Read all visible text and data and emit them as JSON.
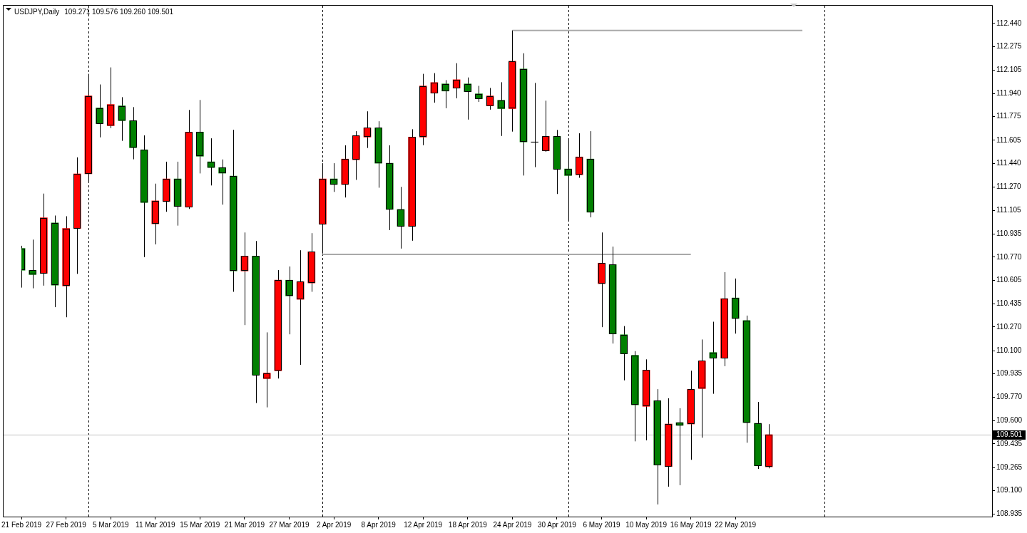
{
  "chart_data": {
    "type": "candlestick",
    "title": "USDJPY,Daily",
    "subtitle": "109.271 109.576 109.260 109.501",
    "categories": [
      "21 Feb 2019",
      null,
      null,
      null,
      "27 Feb 2019",
      null,
      null,
      null,
      "5 Mar 2019",
      null,
      null,
      null,
      "11 Mar 2019",
      null,
      null,
      null,
      "15 Mar 2019",
      null,
      null,
      null,
      "21 Mar 2019",
      null,
      null,
      null,
      "27 Mar 2019",
      null,
      null,
      null,
      "2 Apr 2019",
      null,
      null,
      null,
      "8 Apr 2019",
      null,
      null,
      null,
      "12 Apr 2019",
      null,
      null,
      null,
      "18 Apr 2019",
      null,
      null,
      null,
      "24 Apr 2019",
      null,
      null,
      null,
      "30 Apr 2019",
      null,
      null,
      null,
      "6 May 2019",
      null,
      null,
      null,
      "10 May 2019",
      null,
      null,
      null,
      "16 May 2019",
      null,
      null,
      null,
      "22 May 2019",
      null,
      null,
      null,
      null,
      null,
      null,
      null,
      null,
      null,
      null,
      null,
      null,
      null,
      null,
      null,
      null,
      null,
      null,
      null,
      null,
      null,
      null,
      null
    ],
    "ohlc": [
      [
        110.832,
        110.851,
        110.552,
        110.676
      ],
      [
        110.676,
        110.895,
        110.547,
        110.645
      ],
      [
        110.654,
        111.224,
        110.566,
        111.051
      ],
      [
        111.015,
        111.067,
        110.412,
        110.569
      ],
      [
        110.564,
        111.062,
        110.34,
        110.975
      ],
      [
        110.975,
        111.483,
        110.65,
        111.365
      ],
      [
        111.365,
        112.08,
        111.307,
        111.922
      ],
      [
        111.836,
        112.004,
        111.626,
        111.724
      ],
      [
        111.709,
        112.126,
        111.692,
        111.861
      ],
      [
        111.851,
        111.913,
        111.601,
        111.745
      ],
      [
        111.745,
        111.842,
        111.469,
        111.552
      ],
      [
        111.537,
        111.64,
        110.77,
        111.16
      ],
      [
        111.008,
        111.295,
        110.861,
        111.172
      ],
      [
        111.167,
        111.452,
        111.094,
        111.329
      ],
      [
        111.329,
        111.452,
        110.995,
        111.132
      ],
      [
        111.127,
        111.822,
        111.114,
        111.664
      ],
      [
        111.664,
        111.893,
        111.368,
        111.491
      ],
      [
        111.451,
        111.619,
        111.282,
        111.41
      ],
      [
        111.41,
        111.468,
        111.145,
        111.37
      ],
      [
        111.349,
        111.68,
        110.522,
        110.671
      ],
      [
        110.671,
        110.946,
        110.284,
        110.777
      ],
      [
        110.777,
        110.885,
        109.727,
        109.926
      ],
      [
        109.901,
        110.232,
        109.696,
        109.941
      ],
      [
        109.957,
        110.677,
        109.902,
        110.605
      ],
      [
        110.605,
        110.703,
        110.218,
        110.493
      ],
      [
        110.468,
        110.819,
        110.0,
        110.595
      ],
      [
        110.585,
        110.941,
        110.522,
        110.808
      ],
      [
        111.005,
        111.441,
        110.796,
        111.329
      ],
      [
        111.329,
        111.441,
        111.236,
        111.289
      ],
      [
        111.289,
        111.569,
        111.196,
        111.471
      ],
      [
        111.466,
        111.67,
        111.322,
        111.638
      ],
      [
        111.628,
        111.812,
        111.55,
        111.694
      ],
      [
        111.694,
        111.741,
        111.266,
        111.441
      ],
      [
        111.441,
        111.569,
        110.963,
        111.111
      ],
      [
        111.111,
        111.272,
        110.831,
        110.99
      ],
      [
        110.99,
        111.684,
        110.887,
        111.628
      ],
      [
        111.628,
        112.08,
        111.57,
        111.993
      ],
      [
        111.942,
        112.085,
        111.874,
        112.018
      ],
      [
        112.008,
        112.035,
        111.834,
        111.957
      ],
      [
        111.978,
        112.156,
        111.905,
        112.038
      ],
      [
        112.008,
        112.054,
        111.753,
        111.952
      ],
      [
        111.937,
        111.994,
        111.879,
        111.902
      ],
      [
        111.851,
        111.979,
        111.824,
        111.922
      ],
      [
        111.891,
        112.02,
        111.636,
        111.831
      ],
      [
        111.831,
        112.39,
        111.667,
        112.17
      ],
      [
        112.114,
        112.227,
        111.353,
        111.593
      ],
      [
        111.593,
        112.015,
        111.413,
        111.593
      ],
      [
        111.53,
        111.888,
        111.523,
        111.633
      ],
      [
        111.633,
        111.679,
        111.221,
        111.398
      ],
      [
        111.4,
        111.608,
        111.035,
        111.353
      ],
      [
        111.358,
        111.655,
        111.337,
        111.486
      ],
      [
        111.471,
        111.67,
        111.054,
        111.091
      ],
      [
        110.58,
        110.946,
        110.269,
        110.727
      ],
      [
        110.716,
        110.845,
        110.152,
        110.22
      ],
      [
        110.215,
        110.277,
        109.889,
        110.078
      ],
      [
        110.068,
        110.098,
        109.453,
        109.714
      ],
      [
        109.703,
        110.039,
        109.46,
        109.962
      ],
      [
        109.744,
        109.826,
        109.002,
        109.283
      ],
      [
        109.273,
        109.761,
        109.129,
        109.577
      ],
      [
        109.587,
        109.69,
        109.139,
        109.567
      ],
      [
        109.577,
        109.958,
        109.321,
        109.825
      ],
      [
        109.83,
        110.181,
        109.479,
        110.028
      ],
      [
        110.088,
        110.308,
        109.793,
        110.048
      ],
      [
        110.048,
        110.662,
        109.99,
        110.473
      ],
      [
        110.478,
        110.617,
        110.223,
        110.331
      ],
      [
        110.316,
        110.352,
        109.443,
        109.587
      ],
      [
        109.582,
        109.735,
        109.256,
        109.278
      ],
      [
        109.271,
        109.576,
        109.26,
        109.501
      ],
      null,
      null,
      null,
      null,
      null,
      null,
      null,
      null,
      null,
      null,
      null,
      null,
      null,
      null,
      null,
      null,
      null,
      null,
      null,
      null
    ],
    "colors": [
      "#008000",
      "#008000",
      "#ff0000",
      "#008000",
      "#ff0000",
      "#ff0000",
      "#ff0000",
      "#008000",
      "#ff0000",
      "#008000",
      "#008000",
      "#008000",
      "#ff0000",
      "#ff0000",
      "#008000",
      "#ff0000",
      "#008000",
      "#008000",
      "#008000",
      "#008000",
      "#ff0000",
      "#008000",
      "#ff0000",
      "#ff0000",
      "#008000",
      "#ff0000",
      "#ff0000",
      "#ff0000",
      "#008000",
      "#ff0000",
      "#ff0000",
      "#ff0000",
      "#008000",
      "#008000",
      "#008000",
      "#ff0000",
      "#ff0000",
      "#ff0000",
      "#008000",
      "#ff0000",
      "#008000",
      "#008000",
      "#ff0000",
      "#008000",
      "#ff0000",
      "#008000",
      "#000000",
      "#ff0000",
      "#008000",
      "#008000",
      "#ff0000",
      "#008000",
      "#ff0000",
      "#008000",
      "#008000",
      "#008000",
      "#ff0000",
      "#008000",
      "#ff0000",
      "#008000",
      "#ff0000",
      "#ff0000",
      "#008000",
      "#ff0000",
      "#008000",
      "#008000",
      "#008000",
      "#ff0000",
      null,
      null,
      null,
      null,
      null,
      null,
      null,
      null,
      null,
      null,
      null,
      null,
      null,
      null,
      null,
      null,
      null,
      null,
      null,
      null
    ],
    "series": [
      {
        "type": "line",
        "color": "#a9a9a9",
        "values": [
          null,
          null,
          null,
          null,
          null,
          null,
          null,
          null,
          null,
          null,
          null,
          null,
          null,
          null,
          null,
          null,
          null,
          null,
          null,
          null,
          null,
          null,
          null,
          null,
          null,
          null,
          null,
          null,
          null,
          null,
          null,
          null,
          null,
          null,
          null,
          null,
          null,
          null,
          null,
          null,
          null,
          null,
          null,
          null,
          112.39,
          112.39,
          112.39,
          112.39,
          112.39,
          112.39,
          112.39,
          112.39,
          112.39,
          112.39,
          112.39,
          112.39,
          112.39,
          112.39,
          112.39,
          112.39,
          112.39,
          112.39,
          112.39,
          112.39,
          112.39,
          112.39,
          112.39,
          112.39,
          112.39,
          112.39,
          112.39,
          null,
          null,
          null,
          null,
          null,
          null,
          null,
          null,
          null,
          null,
          null,
          null,
          null,
          null,
          null,
          null,
          null
        ]
      },
      {
        "type": "line",
        "color": "#a9a9a9",
        "values": [
          null,
          null,
          null,
          null,
          null,
          null,
          null,
          null,
          null,
          null,
          null,
          null,
          null,
          null,
          null,
          null,
          null,
          null,
          null,
          null,
          null,
          null,
          null,
          null,
          null,
          null,
          null,
          110.79,
          110.79,
          110.79,
          110.79,
          110.79,
          110.79,
          110.79,
          110.79,
          110.79,
          110.79,
          110.79,
          110.79,
          110.79,
          110.79,
          110.79,
          110.79,
          110.79,
          110.79,
          110.79,
          110.79,
          110.79,
          110.79,
          110.79,
          110.79,
          110.79,
          110.79,
          110.79,
          110.79,
          110.79,
          110.79,
          110.79,
          110.79,
          110.79,
          110.79,
          null,
          null,
          null,
          null,
          null,
          null,
          null,
          null,
          null,
          null,
          null,
          null,
          null,
          null,
          null,
          null,
          null,
          null,
          null,
          null,
          null,
          null,
          null,
          null,
          null,
          null,
          null
        ]
      }
    ],
    "ylim": [
      108.915,
      112.567
    ],
    "yticks": [
      108.935,
      {
        "value": 109.1,
        "label": "109.100"
      },
      109.265,
      109.435,
      {
        "value": 109.6,
        "label": "109.600"
      },
      {
        "value": 109.77,
        "label": "109.770"
      },
      109.935,
      {
        "value": 110.1,
        "label": "110.100"
      },
      {
        "value": 110.27,
        "label": "110.270"
      },
      110.435,
      110.605,
      {
        "value": 110.77,
        "label": "110.770"
      },
      110.935,
      111.105,
      {
        "value": 111.27,
        "label": "111.270"
      },
      {
        "value": 111.44,
        "label": "111.440"
      },
      111.605,
      111.775,
      {
        "value": 111.94,
        "label": "111.940"
      },
      112.105,
      112.275,
      {
        "value": 112.44,
        "label": "112.440"
      }
    ],
    "ref_lines": [
      {
        "axis": "y",
        "value": 109.501,
        "label": "109.501",
        "color": "#c0c0c0"
      }
    ]
  }
}
